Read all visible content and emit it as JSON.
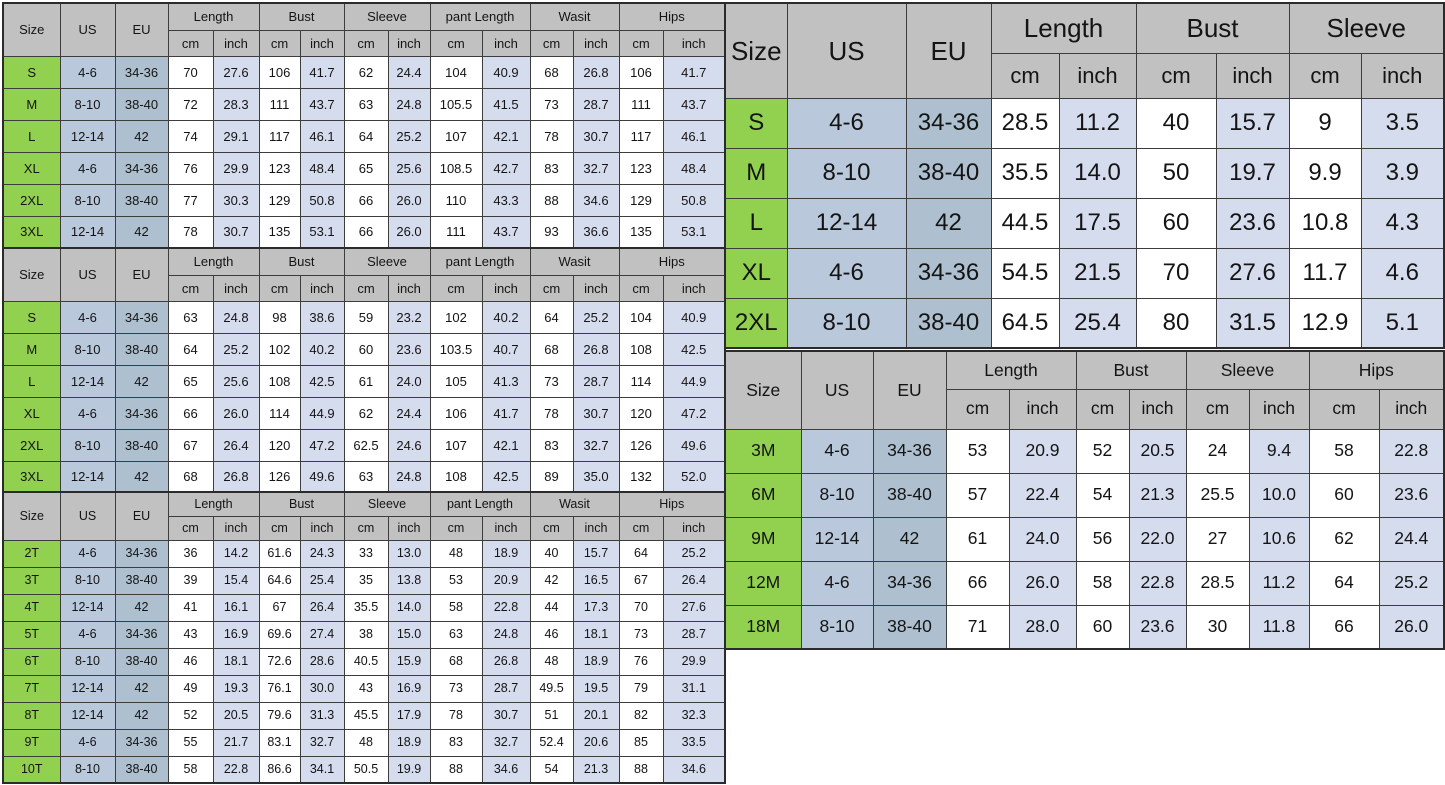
{
  "colors": {
    "size_green": "#92d050",
    "us_blue": "#b9c8db",
    "eu_blue": "#aec0cf",
    "header_gray": "#c1c1c1",
    "inch_lavender": "#d5dcee",
    "border_dark": "#3d3d3d"
  },
  "tables": [
    {
      "id": "adult-pants-1",
      "corner_headers": [
        "Size",
        "US",
        "EU"
      ],
      "measure_groups": [
        "Length",
        "Bust",
        "Sleeve",
        "pant Length",
        "Wasit",
        "Hips"
      ],
      "unit_labels": [
        "cm",
        "inch"
      ],
      "rows": [
        {
          "size": "S",
          "us": "4-6",
          "eu": "34-36",
          "values": [
            "70",
            "27.6",
            "106",
            "41.7",
            "62",
            "24.4",
            "104",
            "40.9",
            "68",
            "26.8",
            "106",
            "41.7"
          ]
        },
        {
          "size": "M",
          "us": "8-10",
          "eu": "38-40",
          "values": [
            "72",
            "28.3",
            "111",
            "43.7",
            "63",
            "24.8",
            "105.5",
            "41.5",
            "73",
            "28.7",
            "111",
            "43.7"
          ]
        },
        {
          "size": "L",
          "us": "12-14",
          "eu": "42",
          "values": [
            "74",
            "29.1",
            "117",
            "46.1",
            "64",
            "25.2",
            "107",
            "42.1",
            "78",
            "30.7",
            "117",
            "46.1"
          ]
        },
        {
          "size": "XL",
          "us": "4-6",
          "eu": "34-36",
          "values": [
            "76",
            "29.9",
            "123",
            "48.4",
            "65",
            "25.6",
            "108.5",
            "42.7",
            "83",
            "32.7",
            "123",
            "48.4"
          ]
        },
        {
          "size": "2XL",
          "us": "8-10",
          "eu": "38-40",
          "values": [
            "77",
            "30.3",
            "129",
            "50.8",
            "66",
            "26.0",
            "110",
            "43.3",
            "88",
            "34.6",
            "129",
            "50.8"
          ]
        },
        {
          "size": "3XL",
          "us": "12-14",
          "eu": "42",
          "values": [
            "78",
            "30.7",
            "135",
            "53.1",
            "66",
            "26.0",
            "111",
            "43.7",
            "93",
            "36.6",
            "135",
            "53.1"
          ]
        }
      ]
    },
    {
      "id": "adult-pants-2",
      "corner_headers": [
        "Size",
        "US",
        "EU"
      ],
      "measure_groups": [
        "Length",
        "Bust",
        "Sleeve",
        "pant Length",
        "Wasit",
        "Hips"
      ],
      "unit_labels": [
        "cm",
        "inch"
      ],
      "rows": [
        {
          "size": "S",
          "us": "4-6",
          "eu": "34-36",
          "values": [
            "63",
            "24.8",
            "98",
            "38.6",
            "59",
            "23.2",
            "102",
            "40.2",
            "64",
            "25.2",
            "104",
            "40.9"
          ]
        },
        {
          "size": "M",
          "us": "8-10",
          "eu": "38-40",
          "values": [
            "64",
            "25.2",
            "102",
            "40.2",
            "60",
            "23.6",
            "103.5",
            "40.7",
            "68",
            "26.8",
            "108",
            "42.5"
          ]
        },
        {
          "size": "L",
          "us": "12-14",
          "eu": "42",
          "values": [
            "65",
            "25.6",
            "108",
            "42.5",
            "61",
            "24.0",
            "105",
            "41.3",
            "73",
            "28.7",
            "114",
            "44.9"
          ]
        },
        {
          "size": "XL",
          "us": "4-6",
          "eu": "34-36",
          "values": [
            "66",
            "26.0",
            "114",
            "44.9",
            "62",
            "24.4",
            "106",
            "41.7",
            "78",
            "30.7",
            "120",
            "47.2"
          ]
        },
        {
          "size": "2XL",
          "us": "8-10",
          "eu": "38-40",
          "values": [
            "67",
            "26.4",
            "120",
            "47.2",
            "62.5",
            "24.6",
            "107",
            "42.1",
            "83",
            "32.7",
            "126",
            "49.6"
          ]
        },
        {
          "size": "3XL",
          "us": "12-14",
          "eu": "42",
          "values": [
            "68",
            "26.8",
            "126",
            "49.6",
            "63",
            "24.8",
            "108",
            "42.5",
            "89",
            "35.0",
            "132",
            "52.0"
          ]
        }
      ]
    },
    {
      "id": "toddler",
      "corner_headers": [
        "Size",
        "US",
        "EU"
      ],
      "measure_groups": [
        "Length",
        "Bust",
        "Sleeve",
        "pant Length",
        "Wasit",
        "Hips"
      ],
      "unit_labels": [
        "cm",
        "inch"
      ],
      "rows": [
        {
          "size": "2T",
          "us": "4-6",
          "eu": "34-36",
          "values": [
            "36",
            "14.2",
            "61.6",
            "24.3",
            "33",
            "13.0",
            "48",
            "18.9",
            "40",
            "15.7",
            "64",
            "25.2"
          ]
        },
        {
          "size": "3T",
          "us": "8-10",
          "eu": "38-40",
          "values": [
            "39",
            "15.4",
            "64.6",
            "25.4",
            "35",
            "13.8",
            "53",
            "20.9",
            "42",
            "16.5",
            "67",
            "26.4"
          ]
        },
        {
          "size": "4T",
          "us": "12-14",
          "eu": "42",
          "values": [
            "41",
            "16.1",
            "67",
            "26.4",
            "35.5",
            "14.0",
            "58",
            "22.8",
            "44",
            "17.3",
            "70",
            "27.6"
          ]
        },
        {
          "size": "5T",
          "us": "4-6",
          "eu": "34-36",
          "values": [
            "43",
            "16.9",
            "69.6",
            "27.4",
            "38",
            "15.0",
            "63",
            "24.8",
            "46",
            "18.1",
            "73",
            "28.7"
          ]
        },
        {
          "size": "6T",
          "us": "8-10",
          "eu": "38-40",
          "values": [
            "46",
            "18.1",
            "72.6",
            "28.6",
            "40.5",
            "15.9",
            "68",
            "26.8",
            "48",
            "18.9",
            "76",
            "29.9"
          ]
        },
        {
          "size": "7T",
          "us": "12-14",
          "eu": "42",
          "values": [
            "49",
            "19.3",
            "76.1",
            "30.0",
            "43",
            "16.9",
            "73",
            "28.7",
            "49.5",
            "19.5",
            "79",
            "31.1"
          ]
        },
        {
          "size": "8T",
          "us": "12-14",
          "eu": "42",
          "values": [
            "52",
            "20.5",
            "79.6",
            "31.3",
            "45.5",
            "17.9",
            "78",
            "30.7",
            "51",
            "20.1",
            "82",
            "32.3"
          ]
        },
        {
          "size": "9T",
          "us": "4-6",
          "eu": "34-36",
          "values": [
            "55",
            "21.7",
            "83.1",
            "32.7",
            "48",
            "18.9",
            "83",
            "32.7",
            "52.4",
            "20.6",
            "85",
            "33.5"
          ]
        },
        {
          "size": "10T",
          "us": "8-10",
          "eu": "38-40",
          "values": [
            "58",
            "22.8",
            "86.6",
            "34.1",
            "50.5",
            "19.9",
            "88",
            "34.6",
            "54",
            "21.3",
            "88",
            "34.6"
          ]
        }
      ]
    },
    {
      "id": "adult-top",
      "corner_headers": [
        "Size",
        "US",
        "EU"
      ],
      "measure_groups": [
        "Length",
        "Bust",
        "Sleeve"
      ],
      "unit_labels": [
        "cm",
        "inch"
      ],
      "rows": [
        {
          "size": "S",
          "us": "4-6",
          "eu": "34-36",
          "values": [
            "28.5",
            "11.2",
            "40",
            "15.7",
            "9",
            "3.5"
          ]
        },
        {
          "size": "M",
          "us": "8-10",
          "eu": "38-40",
          "values": [
            "35.5",
            "14.0",
            "50",
            "19.7",
            "9.9",
            "3.9"
          ]
        },
        {
          "size": "L",
          "us": "12-14",
          "eu": "42",
          "values": [
            "44.5",
            "17.5",
            "60",
            "23.6",
            "10.8",
            "4.3"
          ]
        },
        {
          "size": "XL",
          "us": "4-6",
          "eu": "34-36",
          "values": [
            "54.5",
            "21.5",
            "70",
            "27.6",
            "11.7",
            "4.6"
          ]
        },
        {
          "size": "2XL",
          "us": "8-10",
          "eu": "38-40",
          "values": [
            "64.5",
            "25.4",
            "80",
            "31.5",
            "12.9",
            "5.1"
          ]
        }
      ]
    },
    {
      "id": "baby-months",
      "corner_headers": [
        "Size",
        "US",
        "EU"
      ],
      "measure_groups": [
        "Length",
        "Bust",
        "Sleeve",
        "Hips"
      ],
      "unit_labels": [
        "cm",
        "inch"
      ],
      "rows": [
        {
          "size": "3M",
          "us": "4-6",
          "eu": "34-36",
          "values": [
            "53",
            "20.9",
            "52",
            "20.5",
            "24",
            "9.4",
            "58",
            "22.8"
          ]
        },
        {
          "size": "6M",
          "us": "8-10",
          "eu": "38-40",
          "values": [
            "57",
            "22.4",
            "54",
            "21.3",
            "25.5",
            "10.0",
            "60",
            "23.6"
          ]
        },
        {
          "size": "9M",
          "us": "12-14",
          "eu": "42",
          "values": [
            "61",
            "24.0",
            "56",
            "22.0",
            "27",
            "10.6",
            "62",
            "24.4"
          ]
        },
        {
          "size": "12M",
          "us": "4-6",
          "eu": "34-36",
          "values": [
            "66",
            "26.0",
            "58",
            "22.8",
            "28.5",
            "11.2",
            "64",
            "25.2"
          ]
        },
        {
          "size": "18M",
          "us": "8-10",
          "eu": "38-40",
          "values": [
            "71",
            "28.0",
            "60",
            "23.6",
            "30",
            "11.8",
            "66",
            "26.0"
          ]
        }
      ]
    }
  ]
}
